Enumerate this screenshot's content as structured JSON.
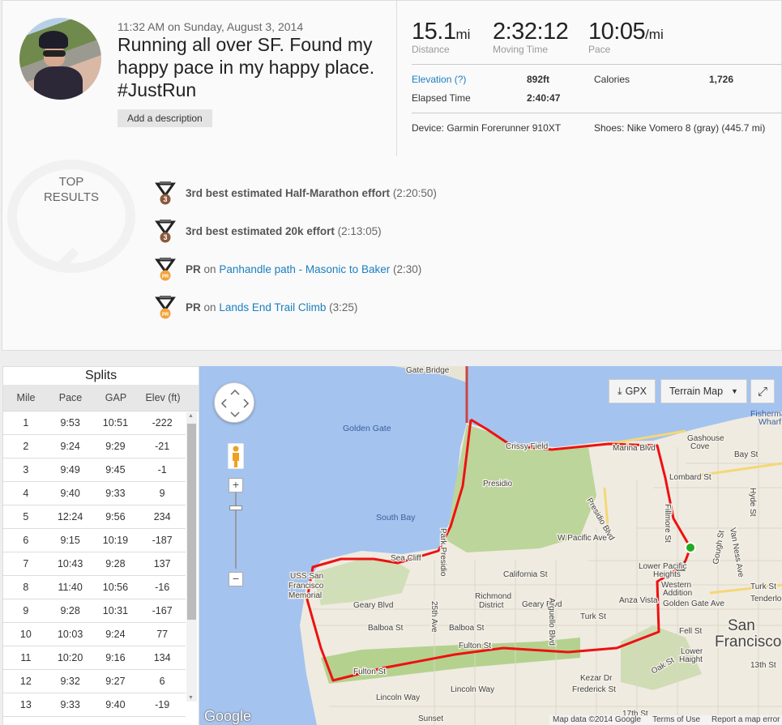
{
  "activity": {
    "date": "11:32 AM on Sunday, August 3, 2014",
    "title": "Running all over SF. Found my happy pace in my happy place. #JustRun",
    "add_description": "Add a description"
  },
  "stats": {
    "distance": {
      "value": "15.1",
      "unit": "mi",
      "label": "Distance"
    },
    "moving_time": {
      "value": "2:32:12",
      "unit": "",
      "label": "Moving Time"
    },
    "pace": {
      "value": "10:05",
      "unit": "/mi",
      "label": "Pace"
    },
    "elevation_label": "Elevation (?)",
    "elevation": "892ft",
    "calories_label": "Calories",
    "calories": "1,726",
    "elapsed_label": "Elapsed Time",
    "elapsed": "2:40:47",
    "device": "Device: Garmin Forerunner 910XT",
    "shoes": "Shoes: Nike Vomero 8 (gray) (445.7 mi)"
  },
  "top_results": {
    "title_line1": "TOP",
    "title_line2": "RESULTS",
    "items": [
      {
        "medal": "3",
        "medal_color": "#8a5a3c",
        "bold": "3rd best estimated Half-Marathon effort",
        "on": "",
        "link": "",
        "time": "(2:20:50)"
      },
      {
        "medal": "3",
        "medal_color": "#8a5a3c",
        "bold": "3rd best estimated 20k effort",
        "on": "",
        "link": "",
        "time": "(2:13:05)"
      },
      {
        "medal": "PR",
        "medal_color": "#f2a33a",
        "bold": "PR",
        "on": "on",
        "link": "Panhandle path - Masonic to Baker",
        "time": "(2:30)"
      },
      {
        "medal": "PR",
        "medal_color": "#f2a33a",
        "bold": "PR",
        "on": "on",
        "link": "Lands End Trail Climb",
        "time": "(3:25)"
      }
    ]
  },
  "splits": {
    "title": "Splits",
    "headers": [
      "Mile",
      "Pace",
      "GAP",
      "Elev (ft)"
    ],
    "rows": [
      [
        "1",
        "9:53",
        "10:51",
        "-222"
      ],
      [
        "2",
        "9:24",
        "9:29",
        "-21"
      ],
      [
        "3",
        "9:49",
        "9:45",
        "-1"
      ],
      [
        "4",
        "9:40",
        "9:33",
        "9"
      ],
      [
        "5",
        "12:24",
        "9:56",
        "234"
      ],
      [
        "6",
        "9:15",
        "10:19",
        "-187"
      ],
      [
        "7",
        "10:43",
        "9:28",
        "137"
      ],
      [
        "8",
        "11:40",
        "10:56",
        "-16"
      ],
      [
        "9",
        "9:28",
        "10:31",
        "-167"
      ],
      [
        "10",
        "10:03",
        "9:24",
        "77"
      ],
      [
        "11",
        "10:20",
        "9:16",
        "134"
      ],
      [
        "12",
        "9:32",
        "9:27",
        "6"
      ],
      [
        "13",
        "9:33",
        "9:40",
        "-19"
      ]
    ]
  },
  "map": {
    "gpx": "GPX",
    "map_type": "Terrain Map",
    "attribution": [
      "Map data ©2014 Google",
      "Terms of Use",
      "Report a map error"
    ],
    "logo": "Google",
    "route_color": "#ee1111",
    "labels": {
      "gate_bridge": "Gate Bridge",
      "golden_gate": "Golden Gate",
      "south_bay": "South Bay",
      "crissy": "Crissy Field",
      "presidio": "Presidio",
      "marina": "Marina Blvd",
      "lombard": "Lombard St",
      "bay": "Bay St",
      "gashouse1": "Gashouse",
      "gashouse2": "Cove",
      "fisherman1": "Fisherman",
      "fisherman2": "Wharf",
      "sea_cliff": "Sea Cliff",
      "california": "California St",
      "wpacific": "W Pacific Ave",
      "richmond1": "Richmond",
      "richmond2": "District",
      "geary": "Geary Blvd",
      "geary2": "Geary Blvd",
      "balboa": "Balboa St",
      "balboa2": "Balboa St",
      "fulton": "Fulton St",
      "fulton2": "Fulton St",
      "lincoln": "Lincoln Way",
      "lincoln2": "Lincoln Way",
      "turk": "Turk St",
      "turk2": "Turk St",
      "anza": "Anza Vista",
      "ggave": "Golden Gate Ave",
      "fell": "Fell St",
      "western1": "Western",
      "western2": "Addition",
      "lph1": "Lower Pacific",
      "lph2": "Heights",
      "sf1": "San",
      "sf2": "Francisco",
      "lower1": "Lower",
      "lower2": "Haight",
      "kezar": "Kezar Dr",
      "frederick": "Frederick St",
      "st17": "17th St",
      "uss1": "USS San",
      "uss2": "Francisco",
      "uss3": "Memorial",
      "ave25": "25th Ave",
      "arguello": "Arguello Blvd",
      "fillmore": "Fillmore St",
      "gough": "Gough St",
      "vanness": "Van Ness Ave",
      "hyde": "Hyde St",
      "tenderloin": "Tenderloin",
      "st13": "13th St",
      "presidio_blvd": "Presidio Blvd",
      "park_presidio": "Park Presidio",
      "oak": "Oak St",
      "sunset": "Sunset"
    }
  }
}
